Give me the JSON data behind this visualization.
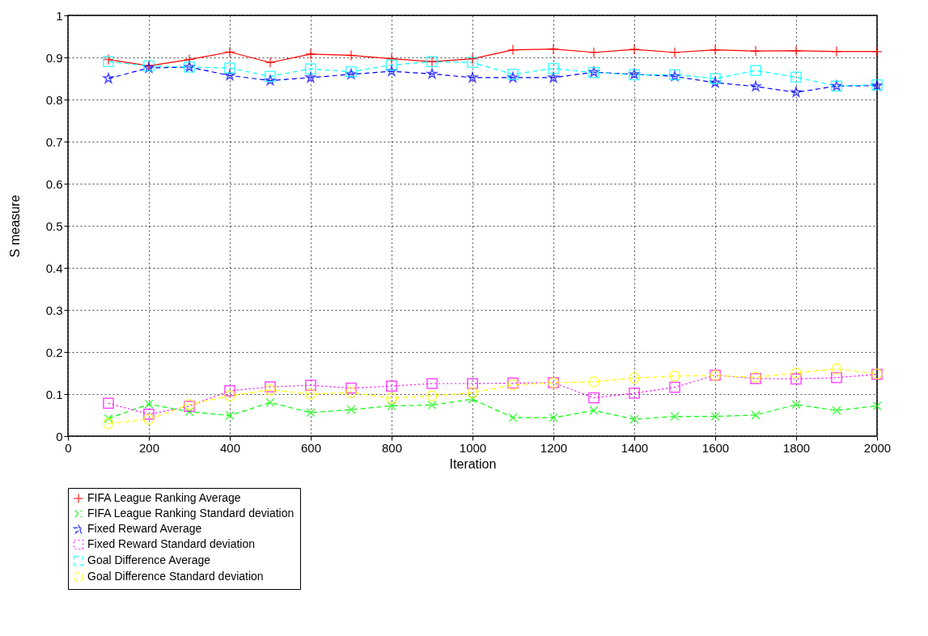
{
  "chart_data": {
    "type": "line",
    "xlabel": "Iteration",
    "ylabel": "S measure",
    "xlim": [
      0,
      2000
    ],
    "xticks": [
      0,
      200,
      400,
      600,
      800,
      1000,
      1200,
      1400,
      1600,
      1800,
      2000
    ],
    "ylim": [
      0,
      1
    ],
    "yticks": [
      0,
      0.1,
      0.2,
      0.3,
      0.4,
      0.5,
      0.6,
      0.7,
      0.8,
      0.9,
      1
    ],
    "grid": true,
    "legend": "bottom",
    "x": [
      100,
      200,
      300,
      400,
      500,
      600,
      700,
      800,
      900,
      1000,
      1100,
      1200,
      1300,
      1400,
      1500,
      1600,
      1700,
      1800,
      1900,
      2000
    ],
    "series": [
      {
        "name": "FIFA League Ranking Average",
        "color": "#ff0000",
        "marker": "cross",
        "line_style": "solid",
        "values": [
          0.895,
          0.88,
          0.895,
          0.913,
          0.888,
          0.908,
          0.905,
          0.897,
          0.89,
          0.897,
          0.918,
          0.92,
          0.912,
          0.919,
          0.912,
          0.918,
          0.915,
          0.916,
          0.914,
          0.914
        ]
      },
      {
        "name": "FIFA League Ranking Standard deviation",
        "color": "#00ff00",
        "marker": "x",
        "line_style": "dashed",
        "values": [
          0.042,
          0.076,
          0.058,
          0.049,
          0.08,
          0.056,
          0.063,
          0.072,
          0.074,
          0.088,
          0.044,
          0.044,
          0.061,
          0.04,
          0.047,
          0.047,
          0.05,
          0.075,
          0.061,
          0.072
        ]
      },
      {
        "name": "Fixed Reward Average",
        "color": "#0000ff",
        "marker": "star",
        "line_style": "dashed",
        "values": [
          0.85,
          0.875,
          0.877,
          0.857,
          0.845,
          0.852,
          0.86,
          0.867,
          0.861,
          0.852,
          0.852,
          0.852,
          0.865,
          0.86,
          0.855,
          0.84,
          0.831,
          0.817,
          0.832,
          0.833
        ]
      },
      {
        "name": "Fixed Reward Standard deviation",
        "color": "#ff00ff",
        "marker": "square",
        "line_style": "dotted",
        "values": [
          0.078,
          0.052,
          0.071,
          0.108,
          0.117,
          0.121,
          0.114,
          0.119,
          0.125,
          0.125,
          0.126,
          0.127,
          0.091,
          0.102,
          0.116,
          0.145,
          0.137,
          0.136,
          0.139,
          0.147
        ]
      },
      {
        "name": "Goal Difference Average",
        "color": "#00ffff",
        "marker": "square",
        "line_style": "dashed",
        "values": [
          0.89,
          0.88,
          0.877,
          0.875,
          0.855,
          0.873,
          0.866,
          0.882,
          0.89,
          0.888,
          0.86,
          0.874,
          0.864,
          0.859,
          0.859,
          0.85,
          0.869,
          0.853,
          0.832,
          0.835
        ]
      },
      {
        "name": "Goal Difference Standard deviation",
        "color": "#ffff00",
        "marker": "circle",
        "line_style": "dashed",
        "values": [
          0.03,
          0.04,
          0.075,
          0.096,
          0.11,
          0.1,
          0.104,
          0.09,
          0.096,
          0.103,
          0.122,
          0.127,
          0.129,
          0.138,
          0.143,
          0.144,
          0.14,
          0.15,
          0.16,
          0.148
        ]
      }
    ]
  }
}
